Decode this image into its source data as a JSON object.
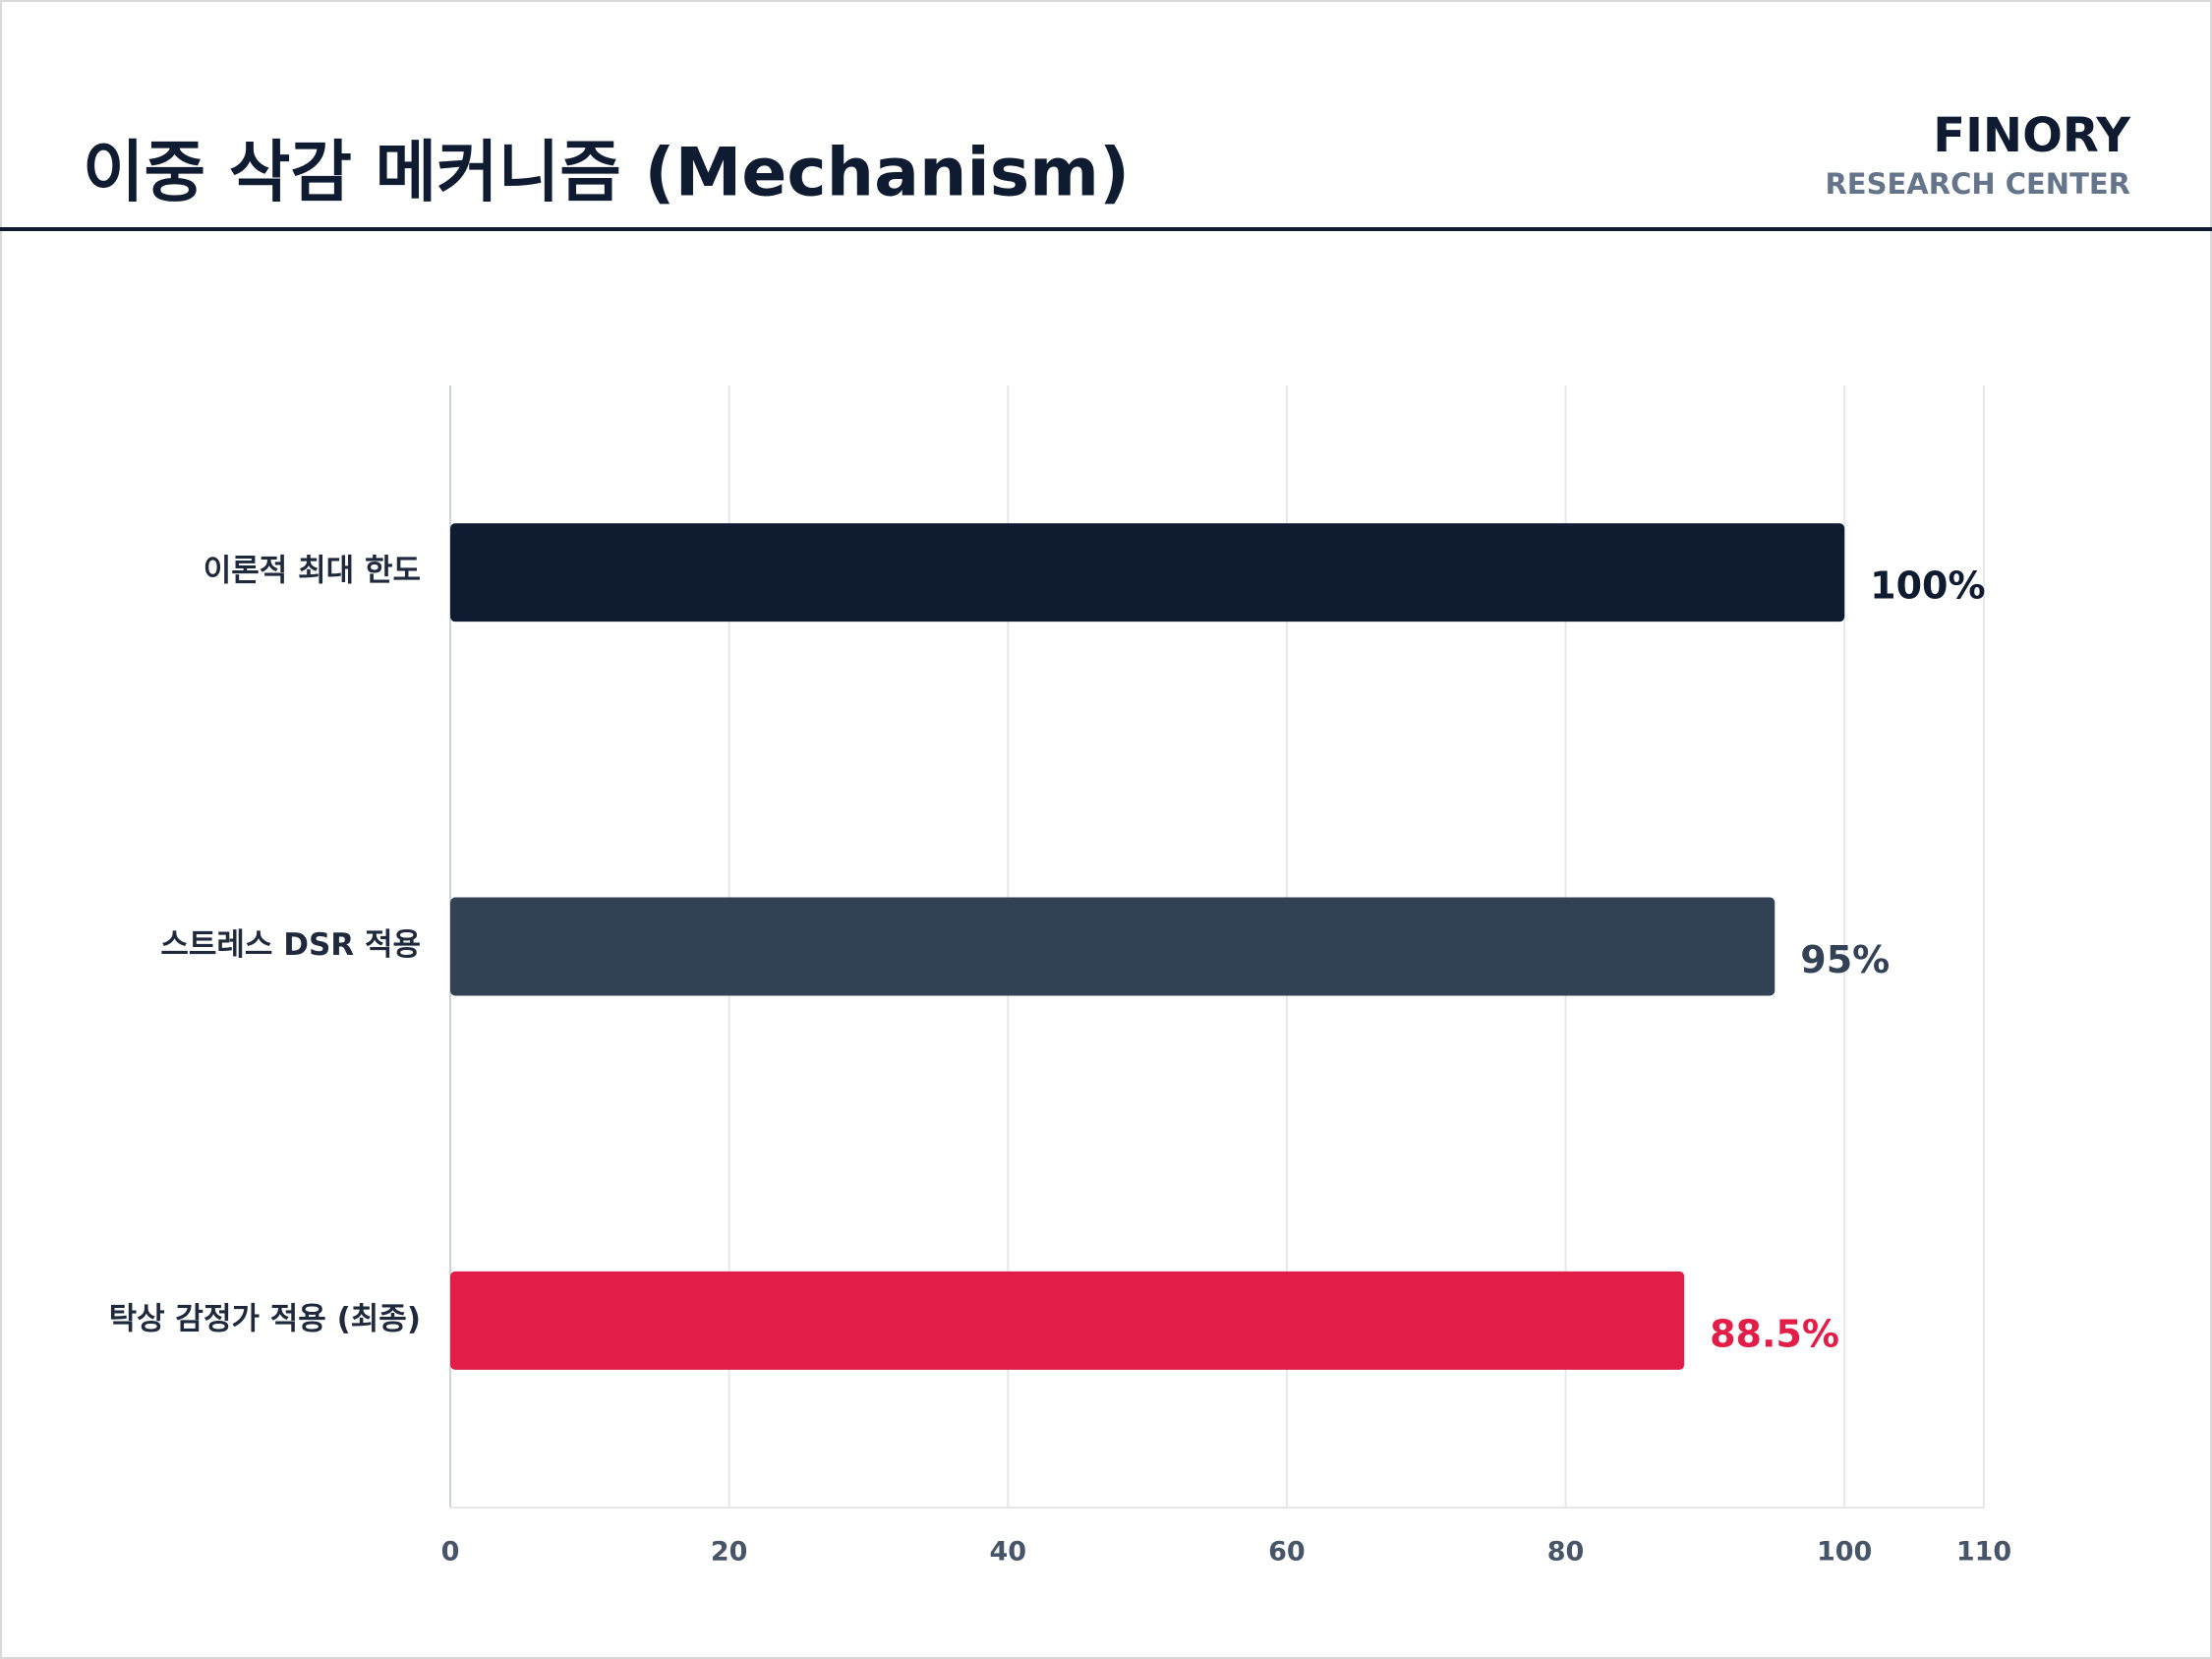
{
  "header": {
    "brand": "FINORY",
    "tagline": "RESEARCH CENTER"
  },
  "chart_data": {
    "type": "hbar",
    "title": "이중 삭감 메커니즘 (Mechanism)",
    "categories": [
      "이론적 최대 한도",
      "스트레스 DSR 적용",
      "탁상 감정가 적용 (최종)"
    ],
    "values": [
      100,
      95,
      88.5
    ],
    "value_labels": [
      "100%",
      "95%",
      "88.5%"
    ],
    "colors": [
      "#0f1b30",
      "#334155",
      "#e11d48"
    ],
    "xlim": [
      0,
      110
    ],
    "xticks": [
      0,
      20,
      40,
      60,
      80,
      100,
      110
    ],
    "grid": true
  }
}
